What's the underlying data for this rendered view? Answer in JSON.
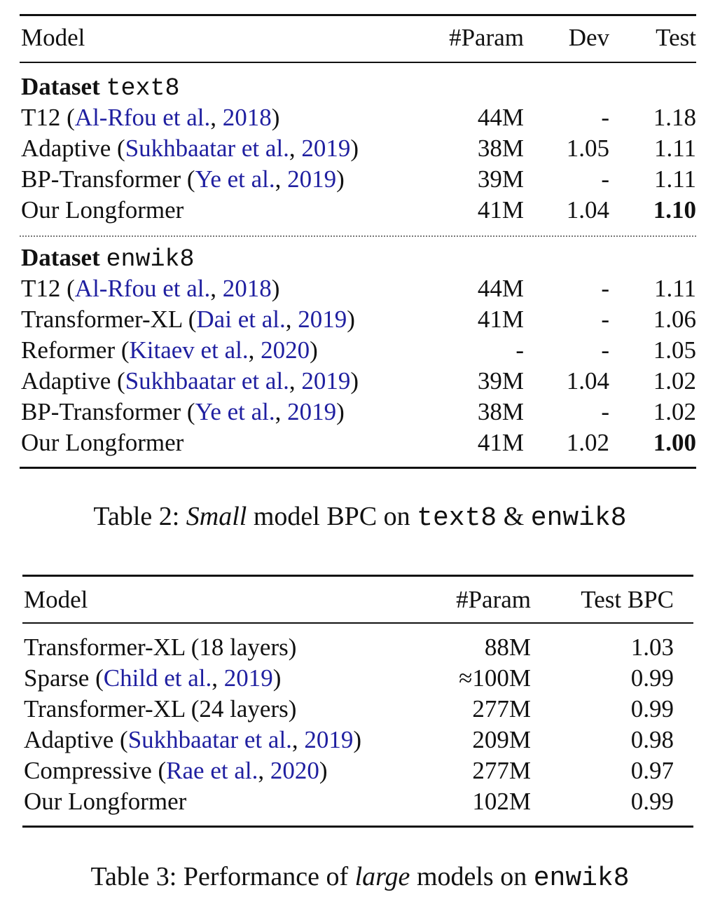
{
  "table2": {
    "headers": {
      "model": "Model",
      "param": "#Param",
      "dev": "Dev",
      "test": "Test"
    },
    "groups": [
      {
        "heading": "Dataset",
        "dataset": "text8",
        "rows": [
          {
            "name": "T12",
            "cite_author": "Al-Rfou et al.",
            "cite_year": "2018",
            "param": "44M",
            "dev": "-",
            "test": "1.18",
            "bold_test": false
          },
          {
            "name": "Adaptive",
            "cite_author": "Sukhbaatar et al.",
            "cite_year": "2019",
            "param": "38M",
            "dev": "1.05",
            "test": "1.11",
            "bold_test": false
          },
          {
            "name": "BP-Transformer",
            "cite_author": "Ye et al.",
            "cite_year": "2019",
            "param": "39M",
            "dev": "-",
            "test": "1.11",
            "bold_test": false
          },
          {
            "name": "Our Longformer",
            "cite_author": "",
            "cite_year": "",
            "param": "41M",
            "dev": "1.04",
            "test": "1.10",
            "bold_test": true
          }
        ]
      },
      {
        "heading": "Dataset",
        "dataset": "enwik8",
        "rows": [
          {
            "name": "T12",
            "cite_author": "Al-Rfou et al.",
            "cite_year": "2018",
            "param": "44M",
            "dev": "-",
            "test": "1.11",
            "bold_test": false
          },
          {
            "name": "Transformer-XL",
            "cite_author": "Dai et al.",
            "cite_year": "2019",
            "param": "41M",
            "dev": "-",
            "test": "1.06",
            "bold_test": false
          },
          {
            "name": "Reformer",
            "cite_author": "Kitaev et al.",
            "cite_year": "2020",
            "param": "-",
            "dev": "-",
            "test": "1.05",
            "bold_test": false
          },
          {
            "name": "Adaptive",
            "cite_author": "Sukhbaatar et al.",
            "cite_year": "2019",
            "param": "39M",
            "dev": "1.04",
            "test": "1.02",
            "bold_test": false
          },
          {
            "name": "BP-Transformer",
            "cite_author": "Ye et al.",
            "cite_year": "2019",
            "param": "38M",
            "dev": "-",
            "test": "1.02",
            "bold_test": false
          },
          {
            "name": "Our Longformer",
            "cite_author": "",
            "cite_year": "",
            "param": "41M",
            "dev": "1.02",
            "test": "1.00",
            "bold_test": true
          }
        ]
      }
    ],
    "caption": {
      "prefix": "Table 2: ",
      "emph": "Small",
      "middle": " model BPC on ",
      "ds1": "text8",
      "amp": " & ",
      "ds2": "enwik8"
    }
  },
  "table3": {
    "headers": {
      "model": "Model",
      "param": "#Param",
      "test_bpc": "Test BPC"
    },
    "rows": [
      {
        "name": "Transformer-XL (18 layers)",
        "cite_author": "",
        "cite_year": "",
        "param": "88M",
        "test_bpc": "1.03"
      },
      {
        "name": "Sparse",
        "cite_author": "Child et al.",
        "cite_year": "2019",
        "param": "≈100M",
        "test_bpc": "0.99"
      },
      {
        "name": "Transformer-XL (24 layers)",
        "cite_author": "",
        "cite_year": "",
        "param": "277M",
        "test_bpc": "0.99"
      },
      {
        "name": "Adaptive",
        "cite_author": "Sukhbaatar et al.",
        "cite_year": "2019",
        "param": "209M",
        "test_bpc": "0.98"
      },
      {
        "name": "Compressive",
        "cite_author": "Rae et al.",
        "cite_year": "2020",
        "param": "277M",
        "test_bpc": "0.97"
      },
      {
        "name": "Our Longformer",
        "cite_author": "",
        "cite_year": "",
        "param": "102M",
        "test_bpc": "0.99"
      }
    ],
    "caption": {
      "prefix": "Table 3: Performance of ",
      "emph": "large",
      "middle": " models on ",
      "ds": "enwik8"
    }
  }
}
